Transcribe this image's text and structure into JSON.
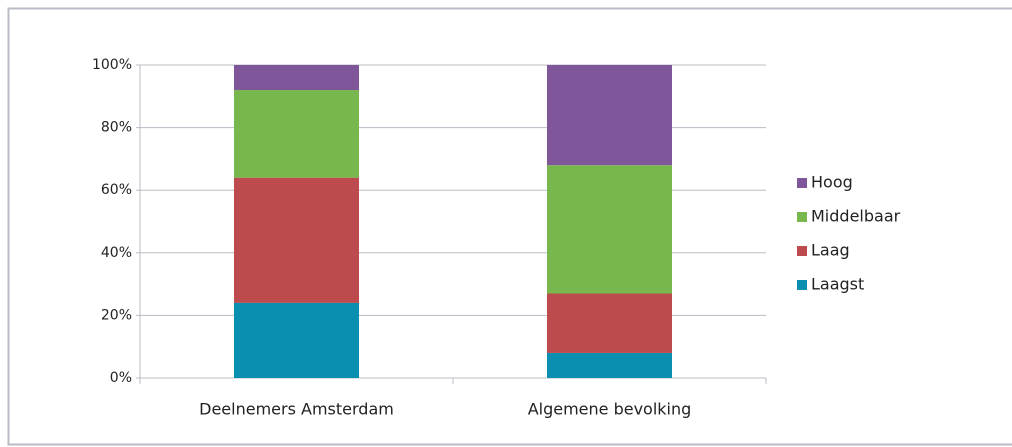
{
  "chart_data": {
    "type": "stacked_bar",
    "categories": [
      "Deelnemers Amsterdam",
      "Algemene bevolking"
    ],
    "series": [
      {
        "name": "Laagst",
        "color": "#0a8fb0",
        "values": [
          24,
          8
        ]
      },
      {
        "name": "Laag",
        "color": "#bd4b4e",
        "values": [
          40,
          19
        ]
      },
      {
        "name": "Middelbaar",
        "color": "#77b74e",
        "values": [
          28,
          41
        ]
      },
      {
        "name": "Hoog",
        "color": "#7f569a",
        "values": [
          8,
          32
        ]
      }
    ],
    "ylim": [
      0,
      100
    ],
    "yticks": [
      {
        "value": 0,
        "label": "0%"
      },
      {
        "value": 20,
        "label": "20%"
      },
      {
        "value": 40,
        "label": "40%"
      },
      {
        "value": 60,
        "label": "60%"
      },
      {
        "value": 80,
        "label": "80%"
      },
      {
        "value": 100,
        "label": "100%"
      }
    ],
    "grid": true,
    "legend": "right"
  }
}
